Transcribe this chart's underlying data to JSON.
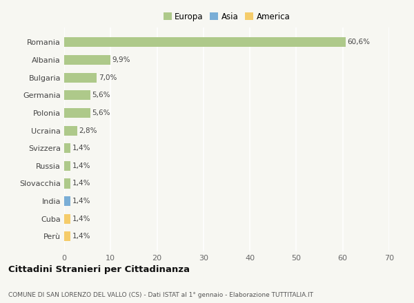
{
  "categories": [
    "Romania",
    "Albania",
    "Bulgaria",
    "Germania",
    "Polonia",
    "Ucraina",
    "Svizzera",
    "Russia",
    "Slovacchia",
    "India",
    "Cuba",
    "Perù"
  ],
  "values": [
    60.6,
    9.9,
    7.0,
    5.6,
    5.6,
    2.8,
    1.4,
    1.4,
    1.4,
    1.4,
    1.4,
    1.4
  ],
  "labels": [
    "60,6%",
    "9,9%",
    "7,0%",
    "5,6%",
    "5,6%",
    "2,8%",
    "1,4%",
    "1,4%",
    "1,4%",
    "1,4%",
    "1,4%",
    "1,4%"
  ],
  "colors": [
    "#aec98a",
    "#aec98a",
    "#aec98a",
    "#aec98a",
    "#aec98a",
    "#aec98a",
    "#aec98a",
    "#aec98a",
    "#aec98a",
    "#7aaed6",
    "#f5cc6a",
    "#f5cc6a"
  ],
  "legend_labels": [
    "Europa",
    "Asia",
    "America"
  ],
  "legend_colors": [
    "#aec98a",
    "#7aaed6",
    "#f5cc6a"
  ],
  "xlim": [
    0,
    70
  ],
  "xticks": [
    0,
    10,
    20,
    30,
    40,
    50,
    60,
    70
  ],
  "title": "Cittadini Stranieri per Cittadinanza",
  "subtitle": "COMUNE DI SAN LORENZO DEL VALLO (CS) - Dati ISTAT al 1° gennaio - Elaborazione TUTTITALIA.IT",
  "bg_color": "#f7f7f2",
  "grid_color": "#ffffff",
  "bar_height": 0.55
}
